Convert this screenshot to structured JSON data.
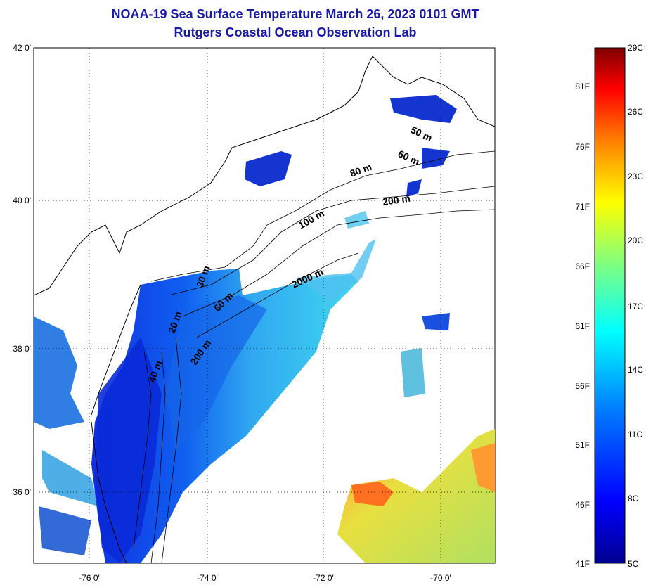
{
  "title_line1": "NOAA-19 Sea Surface Temperature March 26, 2023 0101 GMT",
  "title_line2": "Rutgers Coastal Ocean Observation Lab",
  "lat_labels": [
    "42 0'",
    "40 0'",
    "38 0'",
    "36 0'"
  ],
  "lon_labels": [
    "-76 0'",
    "-74 0'",
    "-72 0'",
    "-70 0'"
  ],
  "contour_labels": [
    "80 m",
    "60 m",
    "50 m",
    "200 m",
    "100 m",
    "2000 m",
    "60 m",
    "200 m",
    "40 m",
    "20 m",
    "30 m"
  ],
  "colorbar": {
    "f_labels": [
      "81F",
      "76F",
      "71F",
      "66F",
      "61F",
      "56F",
      "51F",
      "46F",
      "41F"
    ],
    "c_labels": [
      "29C",
      "26C",
      "23C",
      "20C",
      "17C",
      "14C",
      "11C",
      "8C",
      "5C"
    ],
    "stops": [
      "#00008f",
      "#0000ff",
      "#007fff",
      "#00ffff",
      "#7fff7f",
      "#ffff00",
      "#ff7f00",
      "#ff0000",
      "#7f0000"
    ]
  }
}
